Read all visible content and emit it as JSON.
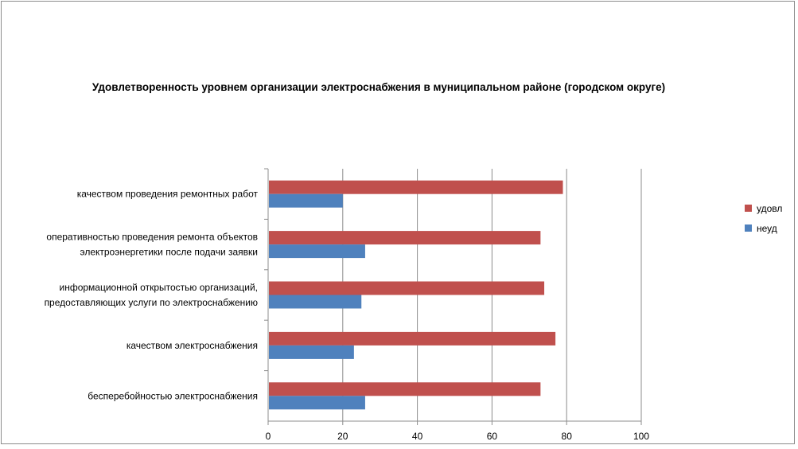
{
  "chart_data": {
    "type": "bar",
    "orientation": "horizontal",
    "title": "Удовлетворенность уровнем организации электроснабжения в муниципальном районе (городском округе)",
    "categories": [
      [
        "качеством проведения ремонтных работ"
      ],
      [
        "оперативностью проведения ремонта объектов",
        "электроэнергетики после подачи заявки"
      ],
      [
        "информационной открытостью организаций,",
        "предоставляющих услуги по электроснабжению"
      ],
      [
        "качеством электроснабжения"
      ],
      [
        "бесперебойностью электроснабжения"
      ]
    ],
    "series": [
      {
        "name": "удовл",
        "color": "#c0504d",
        "values": [
          79,
          73,
          74,
          77,
          73
        ]
      },
      {
        "name": "неуд",
        "color": "#4f81bd",
        "values": [
          20,
          26,
          25,
          23,
          26
        ]
      }
    ],
    "xlim": [
      0,
      100
    ],
    "xticks": [
      0,
      20,
      40,
      60,
      80,
      100
    ],
    "grid": true,
    "legend_position": "right"
  }
}
